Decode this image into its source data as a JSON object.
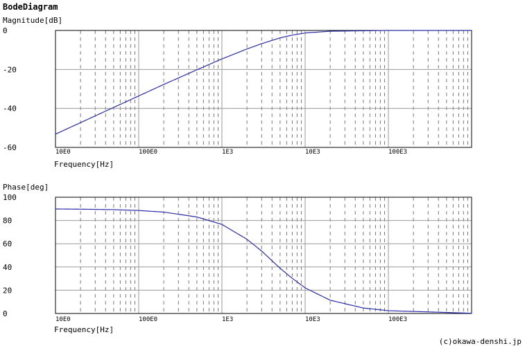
{
  "title": "BodeDiagram",
  "copyright": "(c)okawa-denshi.jp",
  "colors": {
    "curve": "#2a2aa8",
    "frame": "#000000",
    "major_grid": "#999999",
    "minor_grid": "#777777"
  },
  "chart_data": [
    {
      "type": "line",
      "ylabel": "Magnitude[dB]",
      "xlabel": "Frequency[Hz]",
      "x_scale": "log",
      "xlim": [
        10,
        1000000
      ],
      "ylim": [
        -60,
        0
      ],
      "grid": true,
      "x_tick_labels": [
        "10E0",
        "100E0",
        "1E3",
        "10E3",
        "100E3"
      ],
      "y_ticks": [
        -60,
        -40,
        -20,
        0
      ],
      "y_tick_labels": [
        "-60",
        "-40",
        "-20",
        "0"
      ],
      "series": [
        {
          "x": [
            10,
            20,
            50,
            100,
            200,
            500,
            1000,
            2000,
            3000,
            5000,
            7000,
            10000,
            20000,
            100000,
            1000000
          ],
          "values": [
            -53.2,
            -47.3,
            -39.5,
            -33.6,
            -27.7,
            -20.2,
            -14.6,
            -9.5,
            -6.8,
            -3.8,
            -2.4,
            -1.3,
            -0.4,
            0,
            0
          ]
        }
      ]
    },
    {
      "type": "line",
      "ylabel": "Phase[deg]",
      "xlabel": "Frequency[Hz]",
      "x_scale": "log",
      "xlim": [
        10,
        1000000
      ],
      "ylim": [
        0,
        100
      ],
      "grid": true,
      "x_tick_labels": [
        "10E0",
        "100E0",
        "1E3",
        "10E3",
        "100E3"
      ],
      "y_ticks": [
        0,
        20,
        40,
        60,
        80,
        100
      ],
      "y_tick_labels": [
        "0",
        "20",
        "40",
        "60",
        "80",
        "100"
      ],
      "series": [
        {
          "x": [
            10,
            20,
            50,
            100,
            200,
            500,
            1000,
            2000,
            3000,
            5000,
            7000,
            10000,
            20000,
            50000,
            100000,
            1000000
          ],
          "values": [
            89.9,
            89.7,
            89.3,
            88.6,
            87.2,
            83.0,
            76.6,
            63.8,
            53.7,
            38.9,
            30.2,
            22.0,
            11.4,
            4.7,
            2.4,
            0.2
          ]
        }
      ]
    }
  ]
}
